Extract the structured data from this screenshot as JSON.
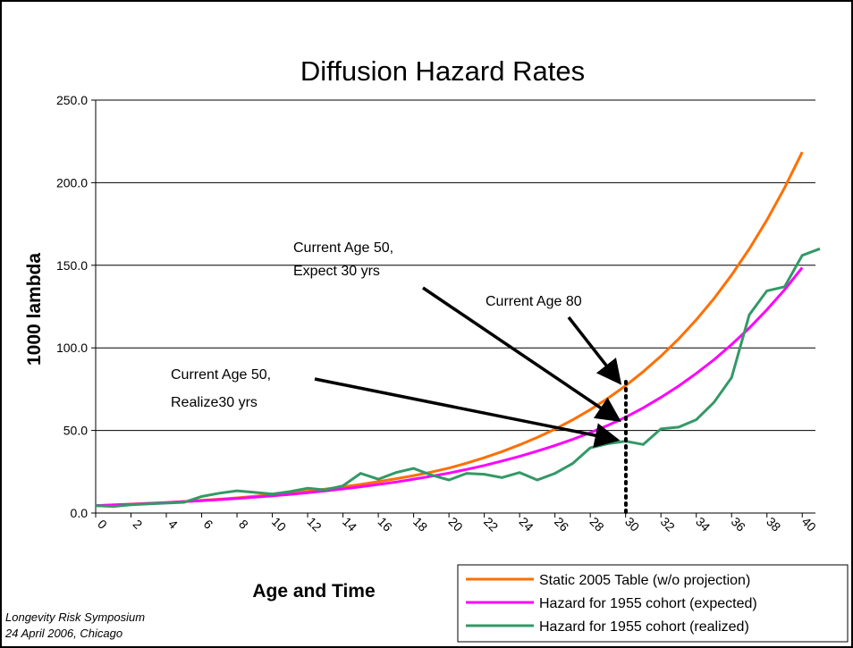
{
  "chart_data": {
    "type": "line",
    "title": "Diffusion Hazard Rates",
    "x_label": "Age and Time",
    "y_label": "1000 lambda",
    "footer": [
      "Longevity Risk Symposium",
      "24 April 2006, Chicago"
    ],
    "annotations": [
      [
        "Current Age 50,",
        "Expect 30 yrs"
      ],
      [
        "Current Age 80"
      ],
      [
        "Current Age 50,",
        "Realize30 yrs"
      ]
    ],
    "x": [
      0,
      1,
      2,
      3,
      4,
      5,
      6,
      7,
      8,
      9,
      10,
      11,
      12,
      13,
      14,
      15,
      16,
      17,
      18,
      19,
      20,
      21,
      22,
      23,
      24,
      25,
      26,
      27,
      28,
      29,
      30,
      31,
      32,
      33,
      34,
      35,
      36,
      37,
      38,
      39,
      40,
      41
    ],
    "xlim": [
      0,
      41
    ],
    "xticks": [
      0,
      2,
      4,
      6,
      8,
      10,
      12,
      14,
      16,
      18,
      20,
      22,
      24,
      26,
      28,
      30,
      32,
      34,
      36,
      38,
      40
    ],
    "ylim": [
      0,
      250
    ],
    "yticks": [
      {
        "value": 0,
        "label": "0.0"
      },
      {
        "value": 50,
        "label": "50.0"
      },
      {
        "value": 100,
        "label": "100.0"
      },
      {
        "value": 150,
        "label": "150.0"
      },
      {
        "value": 200,
        "label": "200.0"
      },
      {
        "value": 250,
        "label": "250.0"
      }
    ],
    "grid": true,
    "legend": "bottom-right",
    "series": [
      {
        "name": "Static 2005 Table (w/o projection)",
        "color": "#ff6f00",
        "values": [
          4.5,
          4.9,
          5.4,
          5.9,
          6.4,
          7.0,
          7.7,
          8.4,
          9.2,
          10.1,
          11.1,
          12.1,
          13.2,
          14.5,
          15.9,
          17.3,
          19.0,
          20.8,
          22.7,
          24.8,
          27.2,
          30.2,
          33.5,
          37.2,
          41.3,
          45.8,
          50.8,
          56.4,
          62.6,
          69.5,
          77.1,
          85.6,
          95.0,
          105.4,
          117.0,
          129.8,
          144.1,
          159.9,
          177.4,
          196.9,
          218.5,
          null
        ]
      },
      {
        "name": "Hazard for 1955 cohort (expected)",
        "color": "#ff00ff",
        "values": [
          4.5,
          4.9,
          5.3,
          5.8,
          6.3,
          6.9,
          7.4,
          8.1,
          8.8,
          9.6,
          10.4,
          11.3,
          12.3,
          13.4,
          14.6,
          15.9,
          17.3,
          18.8,
          20.5,
          22.3,
          24.2,
          26.4,
          28.8,
          31.5,
          34.3,
          37.5,
          40.9,
          44.6,
          48.7,
          53.1,
          58.0,
          63.7,
          70.0,
          76.9,
          84.5,
          92.8,
          102.0,
          112.0,
          123.1,
          135.2,
          148.6,
          null
        ]
      },
      {
        "name": "Hazard for 1955 cohort (realized)",
        "color": "#339966",
        "values": [
          4.5,
          4,
          5,
          5.5,
          6,
          6.5,
          10,
          12,
          13.5,
          12.5,
          11.5,
          13,
          15,
          14,
          16.5,
          24,
          20.5,
          24.5,
          27,
          23,
          20,
          24,
          23.5,
          21.5,
          24.5,
          20,
          24,
          30,
          39.5,
          42,
          43.5,
          41.5,
          51,
          52,
          56.5,
          67,
          82,
          120,
          134.5,
          137,
          156,
          160
        ]
      }
    ]
  }
}
